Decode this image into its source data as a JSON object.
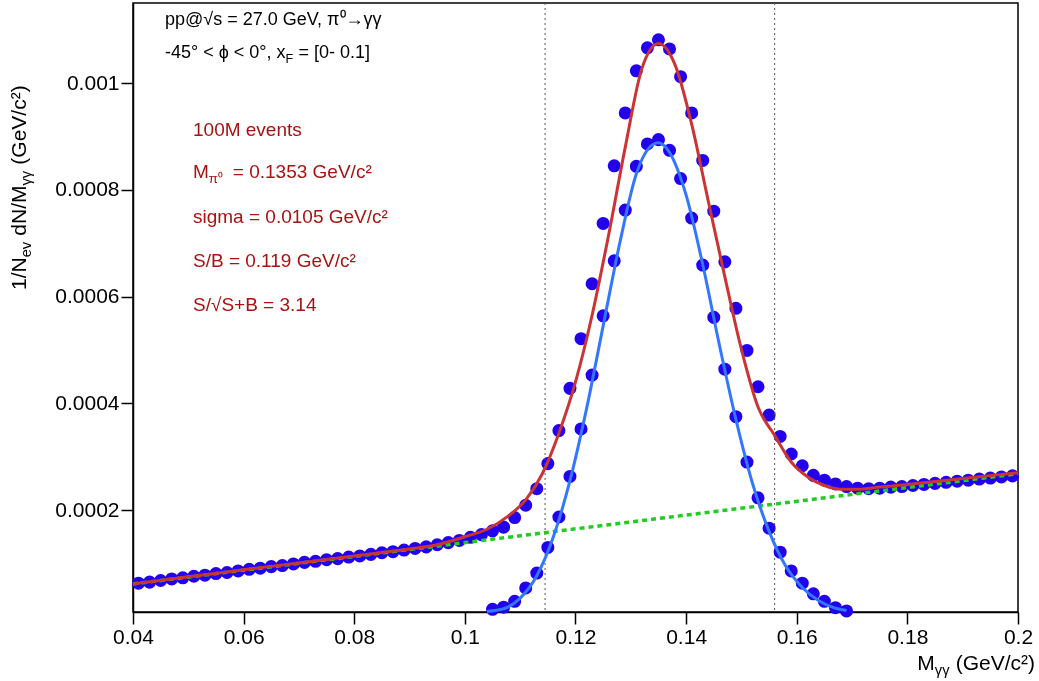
{
  "chart_data": {
    "type": "scatter",
    "xlabel": "M$_{γγ}$ (GeV/c²)",
    "ylabel": "1/N$_{ev}$ dN/M$_{γγ}$ (GeV/c²)",
    "annotations": [
      "pp@√s = 27.0 GeV, π⁰→γγ",
      "-45° < ϕ < 0°, x$_{F}$ = [0- 0.1]",
      "100M events",
      "M$_{π⁰}$ = 0.1353 GeV/c²",
      "sigma = 0.0105 GeV/c²",
      "S/B = 0.119 GeV/c²",
      "S/√S+B = 3.14"
    ],
    "xlim": [
      0.04,
      0.2
    ],
    "ylim": [
      9e-06,
      0.00115
    ],
    "xticks": [
      0.04,
      0.06,
      0.08,
      0.1,
      0.12,
      0.14,
      0.16,
      0.18,
      0.2
    ],
    "yticks": [
      0.0002,
      0.0004,
      0.0006,
      0.0008,
      0.001
    ],
    "grid": false,
    "marker": "circle",
    "ref_lines": [
      {
        "axis": "x",
        "value": 0.1145,
        "color": "#555555",
        "line_style": "dotted"
      },
      {
        "axis": "x",
        "value": 0.156,
        "color": "#555555",
        "line_style": "dotted"
      }
    ],
    "series": [
      {
        "color": "#2200ee",
        "x": [
          0.041,
          0.043,
          0.045,
          0.047,
          0.049,
          0.051,
          0.053,
          0.055,
          0.057,
          0.059,
          0.061,
          0.063,
          0.065,
          0.067,
          0.069,
          0.071,
          0.073,
          0.075,
          0.077,
          0.079,
          0.081,
          0.083,
          0.085,
          0.087,
          0.089,
          0.091,
          0.093,
          0.095,
          0.097,
          0.099,
          0.101,
          0.103,
          0.105,
          0.107,
          0.109,
          0.111,
          0.113,
          0.115,
          0.117,
          0.119,
          0.121,
          0.123,
          0.125,
          0.127,
          0.129,
          0.131,
          0.133,
          0.135,
          0.137,
          0.139,
          0.141,
          0.143,
          0.145,
          0.147,
          0.149,
          0.151,
          0.153,
          0.155,
          0.157,
          0.159,
          0.161,
          0.163,
          0.165,
          0.167,
          0.169,
          0.171,
          0.173,
          0.175,
          0.177,
          0.179,
          0.181,
          0.183,
          0.185,
          0.187,
          0.189,
          0.191,
          0.193,
          0.195,
          0.197,
          0.199
        ],
        "values": [
          6.3e-05,
          6.5e-05,
          6.8e-05,
          7.1e-05,
          7.3e-05,
          7.6e-05,
          7.8e-05,
          8.1e-05,
          8.3e-05,
          8.6e-05,
          8.9e-05,
          9.1e-05,
          9.4e-05,
          9.6e-05,
          9.9e-05,
          0.000102,
          0.000104,
          0.000107,
          0.000109,
          0.000112,
          0.000114,
          0.000117,
          0.00012,
          0.000122,
          0.000125,
          0.000128,
          0.000131,
          0.000135,
          0.000139,
          0.000143,
          0.000149,
          0.000154,
          0.000161,
          0.000168,
          0.000186,
          0.000209,
          0.00024,
          0.000287,
          0.000349,
          0.000428,
          0.000521,
          0.000624,
          0.000737,
          0.000845,
          0.000944,
          0.001023,
          0.001066,
          0.001081,
          0.001064,
          0.001012,
          0.000944,
          0.000855,
          0.00076,
          0.000665,
          0.000578,
          0.000499,
          0.000431,
          0.000378,
          0.000338,
          0.000305,
          0.000283,
          0.000265,
          0.000256,
          0.000249,
          0.000244,
          0.000241,
          0.00024,
          0.000241,
          0.000243,
          0.000244,
          0.000246,
          0.000248,
          0.00025,
          0.000252,
          0.000254,
          0.000256,
          0.000258,
          0.00026,
          0.000262,
          0.000264
        ]
      },
      {
        "color": "#2200ee",
        "x": [
          0.105,
          0.107,
          0.109,
          0.111,
          0.113,
          0.115,
          0.117,
          0.119,
          0.121,
          0.123,
          0.125,
          0.127,
          0.129,
          0.131,
          0.133,
          0.135,
          0.137,
          0.139,
          0.141,
          0.143,
          0.145,
          0.147,
          0.149,
          0.151,
          0.153,
          0.155,
          0.157,
          0.159,
          0.161,
          0.163,
          0.165,
          0.167,
          0.169
        ],
        "values": [
          1.4e-05,
          1.8e-05,
          2.9e-05,
          5.4e-05,
          8.2e-05,
          0.00013,
          0.000187,
          0.000263,
          0.000352,
          0.000453,
          0.000564,
          0.000667,
          0.000762,
          0.000844,
          0.000886,
          0.000894,
          0.000874,
          0.000821,
          0.000747,
          0.000659,
          0.000561,
          0.000464,
          0.000375,
          0.00029,
          0.000223,
          0.000166,
          0.000121,
          8.6e-05,
          6.3e-05,
          4.3e-05,
          2.9e-05,
          1.7e-05,
          1.1e-05
        ]
      },
      {
        "type": "line",
        "marker": "none",
        "color": "#22cc22",
        "line_style": "dotted",
        "x": [
          0.04,
          0.2
        ],
        "values": [
          6.15e-05,
          0.000268
        ]
      },
      {
        "type": "line",
        "marker": "none",
        "color": "#cc3333",
        "x": [
          0.04,
          0.05,
          0.06,
          0.07,
          0.08,
          0.09,
          0.095,
          0.1,
          0.104,
          0.108,
          0.111,
          0.114,
          0.117,
          0.12,
          0.123,
          0.126,
          0.129,
          0.132,
          0.135,
          0.138,
          0.141,
          0.144,
          0.147,
          0.15,
          0.153,
          0.156,
          0.159,
          0.162,
          0.165,
          0.168,
          0.171,
          0.175,
          0.18,
          0.19,
          0.2
        ],
        "values": [
          6.15e-05,
          7.5e-05,
          8.8e-05,
          0.000101,
          0.000114,
          0.000127,
          0.000135,
          0.00015,
          0.000164,
          0.00019,
          0.000219,
          0.000268,
          0.000344,
          0.00044,
          0.000565,
          0.000716,
          0.00088,
          0.001027,
          0.001074,
          0.001034,
          0.000923,
          0.000779,
          0.000637,
          0.000501,
          0.000393,
          0.00034,
          0.00029,
          0.000262,
          0.000246,
          0.000239,
          0.000239,
          0.000243,
          0.000248,
          0.000259,
          0.00027
        ]
      },
      {
        "type": "line",
        "marker": "none",
        "color": "#3377ff",
        "x": [
          0.104,
          0.107,
          0.11,
          0.113,
          0.116,
          0.119,
          0.122,
          0.125,
          0.128,
          0.131,
          0.134,
          0.135,
          0.137,
          0.14,
          0.143,
          0.146,
          0.149,
          0.152,
          0.155,
          0.158,
          0.161,
          0.164,
          0.167,
          0.169
        ],
        "values": [
          1e-05,
          1.5e-05,
          3.5e-05,
          7.7e-05,
          0.00015,
          0.000255,
          0.00039,
          0.000545,
          0.0007,
          0.00083,
          0.000885,
          0.000888,
          0.00087,
          0.00079,
          0.00066,
          0.00051,
          0.00037,
          0.00025,
          0.00016,
          9.5e-05,
          5.5e-05,
          3e-05,
          1.6e-05,
          1.2e-05
        ]
      }
    ]
  }
}
